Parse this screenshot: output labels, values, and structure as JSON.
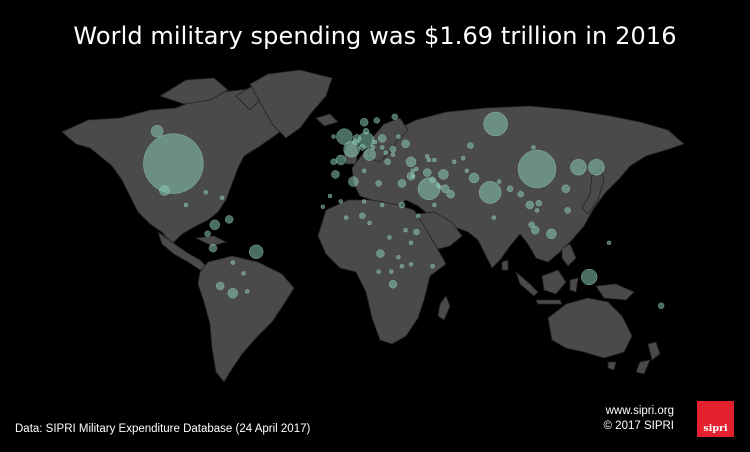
{
  "title": "World military spending was $1.69 trillion in 2016",
  "source": "Data: SIPRI Military Expenditure Database (24 April 2017)",
  "credits": {
    "url": "www.sipri.org",
    "copyright": "© 2017 SIPRI"
  },
  "logo": {
    "text": "sipri",
    "color": "#e3202e"
  },
  "map": {
    "projection": "equirectangular",
    "land_color": "#4a4a4a",
    "bubble_color": "#87c9b5",
    "background": "#000000",
    "bubbles": [
      {
        "place": "United States",
        "lon": -97,
        "lat": 38,
        "r": 30
      },
      {
        "place": "China",
        "lon": 105,
        "lat": 35,
        "r": 19
      },
      {
        "place": "Russia",
        "lon": 82,
        "lat": 60,
        "r": 12
      },
      {
        "place": "Canada",
        "lon": -106,
        "lat": 56,
        "r": 6
      },
      {
        "place": "Saudi Arabia",
        "lon": 45,
        "lat": 24,
        "r": 11
      },
      {
        "place": "India",
        "lon": 79,
        "lat": 22,
        "r": 11
      },
      {
        "place": "Japan",
        "lon": 138,
        "lat": 36,
        "r": 8
      },
      {
        "place": "South Korea",
        "lon": 128,
        "lat": 36,
        "r": 8
      },
      {
        "place": "Brazil",
        "lon": -51,
        "lat": -11,
        "r": 7
      },
      {
        "place": "Australia",
        "lon": 134,
        "lat": -25,
        "r": 8
      },
      {
        "place": "United Kingdom",
        "lon": -2,
        "lat": 53,
        "r": 8
      },
      {
        "place": "France",
        "lon": 2,
        "lat": 46,
        "r": 8
      },
      {
        "place": "Germany",
        "lon": 10,
        "lat": 51,
        "r": 8
      },
      {
        "place": "Italy",
        "lon": 12,
        "lat": 43,
        "r": 6
      },
      {
        "place": "Spain",
        "lon": -4,
        "lat": 40,
        "r": 5
      },
      {
        "place": "Turkey",
        "lon": 35,
        "lat": 39,
        "r": 5
      },
      {
        "place": "Iran",
        "lon": 53,
        "lat": 32,
        "r": 5
      },
      {
        "place": "Israel",
        "lon": 35,
        "lat": 31,
        "r": 4
      },
      {
        "place": "Algeria",
        "lon": 3,
        "lat": 28,
        "r": 5
      },
      {
        "place": "Pakistan",
        "lon": 70,
        "lat": 30,
        "r": 5
      },
      {
        "place": "Taiwan",
        "lon": 121,
        "lat": 24,
        "r": 4
      },
      {
        "place": "Mexico",
        "lon": -102,
        "lat": 23,
        "r": 5
      },
      {
        "place": "Colombia",
        "lon": -74,
        "lat": 4,
        "r": 5
      },
      {
        "place": "Venezuela",
        "lon": -66,
        "lat": 7,
        "r": 4
      },
      {
        "place": "Argentina",
        "lon": -64,
        "lat": -34,
        "r": 5
      },
      {
        "place": "Chile",
        "lon": -71,
        "lat": -30,
        "r": 4
      },
      {
        "place": "Peru",
        "lon": -75,
        "lat": -9,
        "r": 4
      },
      {
        "place": "Egypt",
        "lon": 30,
        "lat": 27,
        "r": 4
      },
      {
        "place": "Iraq",
        "lon": 44,
        "lat": 33,
        "r": 4
      },
      {
        "place": "UAE",
        "lon": 54,
        "lat": 24,
        "r": 4
      },
      {
        "place": "Ukraine",
        "lon": 32,
        "lat": 49,
        "r": 4
      },
      {
        "place": "Poland",
        "lon": 19,
        "lat": 52,
        "r": 4
      },
      {
        "place": "Netherlands",
        "lon": 5,
        "lat": 52,
        "r": 4
      },
      {
        "place": "Sweden",
        "lon": 16,
        "lat": 62,
        "r": 3
      },
      {
        "place": "Norway",
        "lon": 9,
        "lat": 61,
        "r": 4
      },
      {
        "place": "Indonesia",
        "lon": 113,
        "lat": -1,
        "r": 5
      },
      {
        "place": "Singapore",
        "lon": 104,
        "lat": 1,
        "r": 4
      },
      {
        "place": "Thailand",
        "lon": 101,
        "lat": 15,
        "r": 4
      },
      {
        "place": "Vietnam",
        "lon": 106,
        "lat": 16,
        "r": 3
      },
      {
        "place": "Philippines",
        "lon": 122,
        "lat": 12,
        "r": 3
      },
      {
        "place": "Malaysia",
        "lon": 102,
        "lat": 4,
        "r": 3
      },
      {
        "place": "Myanmar",
        "lon": 96,
        "lat": 21,
        "r": 3
      },
      {
        "place": "Kazakhstan",
        "lon": 68,
        "lat": 48,
        "r": 3
      },
      {
        "place": "Nigeria",
        "lon": 8,
        "lat": 9,
        "r": 3
      },
      {
        "place": "Morocco",
        "lon": -7,
        "lat": 32,
        "r": 4
      },
      {
        "place": "Angola",
        "lon": 18,
        "lat": -12,
        "r": 4
      },
      {
        "place": "South Africa",
        "lon": 25,
        "lat": -29,
        "r": 4
      },
      {
        "place": "Kenya",
        "lon": 38,
        "lat": 0,
        "r": 3
      },
      {
        "place": "Sudan",
        "lon": 30,
        "lat": 15,
        "r": 3
      },
      {
        "place": "New Zealand",
        "lon": 174,
        "lat": -41,
        "r": 3
      },
      {
        "place": "Oman",
        "lon": 57,
        "lat": 21,
        "r": 4
      },
      {
        "place": "Kuwait",
        "lon": 47,
        "lat": 29,
        "r": 3
      },
      {
        "place": "Greece",
        "lon": 22,
        "lat": 39,
        "r": 3
      },
      {
        "place": "Romania",
        "lon": 25,
        "lat": 46,
        "r": 3
      },
      {
        "place": "Belarus",
        "lon": 28,
        "lat": 53,
        "r": 2
      },
      {
        "place": "Finland",
        "lon": 26,
        "lat": 64,
        "r": 3
      },
      {
        "place": "Denmark",
        "lon": 10,
        "lat": 56,
        "r": 3
      },
      {
        "place": "Switzerland",
        "lon": 8,
        "lat": 47,
        "r": 3
      },
      {
        "place": "Austria",
        "lon": 14,
        "lat": 47,
        "r": 2
      },
      {
        "place": "Portugal",
        "lon": -8,
        "lat": 39,
        "r": 3
      },
      {
        "place": "Belgium",
        "lon": 4,
        "lat": 50,
        "r": 3
      },
      {
        "place": "Czech Republic",
        "lon": 15,
        "lat": 50,
        "r": 2
      },
      {
        "place": "Azerbaijan",
        "lon": 48,
        "lat": 40,
        "r": 2
      },
      {
        "place": "Cuba",
        "lon": -79,
        "lat": 22,
        "r": 2
      },
      {
        "place": "Ecuador",
        "lon": -78,
        "lat": -1,
        "r": 3
      },
      {
        "place": "Bolivia",
        "lon": -64,
        "lat": -17,
        "r": 2
      },
      {
        "place": "Uruguay",
        "lon": -56,
        "lat": -33,
        "r": 2
      },
      {
        "place": "Dominican Republic",
        "lon": -70,
        "lat": 19,
        "r": 2
      },
      {
        "place": "Bangladesh",
        "lon": 90,
        "lat": 24,
        "r": 3
      },
      {
        "place": "Sri Lanka",
        "lon": 81,
        "lat": 8,
        "r": 2
      },
      {
        "place": "Afghanistan",
        "lon": 66,
        "lat": 34,
        "r": 2
      },
      {
        "place": "Libya",
        "lon": 17,
        "lat": 27,
        "r": 3
      },
      {
        "place": "Tunisia",
        "lon": 9,
        "lat": 34,
        "r": 2
      },
      {
        "place": "Ethiopia",
        "lon": 39,
        "lat": 9,
        "r": 2
      },
      {
        "place": "Tanzania",
        "lon": 35,
        "lat": -6,
        "r": 2
      },
      {
        "place": "DR Congo",
        "lon": 23,
        "lat": -3,
        "r": 2
      },
      {
        "place": "Cameroon",
        "lon": 12,
        "lat": 5,
        "r": 2
      },
      {
        "place": "Ghana",
        "lon": -1,
        "lat": 8,
        "r": 2
      },
      {
        "place": "Senegal",
        "lon": -14,
        "lat": 14,
        "r": 2
      },
      {
        "place": "Mali",
        "lon": -4,
        "lat": 17,
        "r": 2
      },
      {
        "place": "Mongolia",
        "lon": 103,
        "lat": 47,
        "r": 2
      },
      {
        "place": "Uzbekistan",
        "lon": 64,
        "lat": 41,
        "r": 2
      },
      {
        "place": "Yemen",
        "lon": 48,
        "lat": 15,
        "r": 2
      },
      {
        "place": "Jordan",
        "lon": 36,
        "lat": 31,
        "r": 2
      },
      {
        "place": "Lebanon",
        "lon": 36,
        "lat": 34,
        "r": 2
      },
      {
        "place": "Qatar",
        "lon": 51,
        "lat": 25,
        "r": 2
      },
      {
        "place": "Bahrain",
        "lon": 50,
        "lat": 26,
        "r": 2
      },
      {
        "place": "Zambia",
        "lon": 28,
        "lat": -14,
        "r": 2
      },
      {
        "place": "Zimbabwe",
        "lon": 30,
        "lat": -19,
        "r": 2
      },
      {
        "place": "Namibia",
        "lon": 17,
        "lat": -22,
        "r": 2
      },
      {
        "place": "Botswana",
        "lon": 24,
        "lat": -22,
        "r": 2
      },
      {
        "place": "Mozambique",
        "lon": 35,
        "lat": -18,
        "r": 2
      },
      {
        "place": "Uganda",
        "lon": 32,
        "lat": 1,
        "r": 2
      },
      {
        "place": "Chad",
        "lon": 19,
        "lat": 15,
        "r": 2
      },
      {
        "place": "Niger",
        "lon": 9,
        "lat": 17,
        "r": 2
      },
      {
        "place": "Mauritania",
        "lon": -10,
        "lat": 20,
        "r": 2
      },
      {
        "place": "Hungary",
        "lon": 19,
        "lat": 47,
        "r": 2
      },
      {
        "place": "Serbia",
        "lon": 21,
        "lat": 44,
        "r": 2
      },
      {
        "place": "Bulgaria",
        "lon": 25,
        "lat": 43,
        "r": 2
      },
      {
        "place": "Ireland",
        "lon": -8,
        "lat": 53,
        "r": 2
      },
      {
        "place": "Paraguay",
        "lon": -58,
        "lat": -23,
        "r": 2
      },
      {
        "place": "Guatemala",
        "lon": -90,
        "lat": 15,
        "r": 2
      },
      {
        "place": "Papua New Guinea",
        "lon": 145,
        "lat": -6,
        "r": 2
      },
      {
        "place": "Cambodia",
        "lon": 105,
        "lat": 12,
        "r": 2
      },
      {
        "place": "Nepal",
        "lon": 84,
        "lat": 28,
        "r": 2
      },
      {
        "place": "Turkmenistan",
        "lon": 59,
        "lat": 39,
        "r": 2
      },
      {
        "place": "Georgia",
        "lon": 44,
        "lat": 42,
        "r": 2
      },
      {
        "place": "Armenia",
        "lon": 45,
        "lat": 40,
        "r": 2
      },
      {
        "place": "Syria",
        "lon": 38,
        "lat": 35,
        "r": 2
      },
      {
        "place": "Madagascar",
        "lon": 47,
        "lat": -19,
        "r": 2
      }
    ]
  }
}
